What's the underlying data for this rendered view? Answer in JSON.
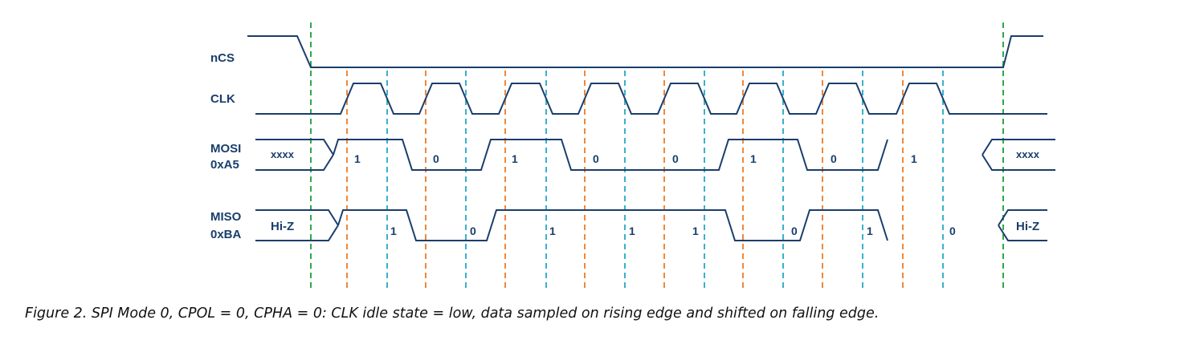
{
  "signals": {
    "ncs": {
      "label": "nCS"
    },
    "clk": {
      "label": "CLK"
    },
    "mosi": {
      "label": "MOSI",
      "value_label": "0xA5",
      "idle_before": "xxxx",
      "idle_after": "xxxx",
      "bits": [
        "1",
        "0",
        "1",
        "0",
        "0",
        "1",
        "0",
        "1"
      ]
    },
    "miso": {
      "label": "MISO",
      "value_label": "0xBA",
      "idle_before": "Hi-Z",
      "idle_after": "Hi-Z",
      "bits": [
        "1",
        "0",
        "1",
        "1",
        "1",
        "0",
        "1",
        "0"
      ]
    }
  },
  "colors": {
    "signal": "#1a3e6b",
    "chip_select_marker": "#2ea84a",
    "rising_edge_marker": "#f0883a",
    "falling_edge_marker": "#3bb0cc"
  },
  "caption": "Figure 2. SPI Mode 0, CPOL = 0, CPHA = 0: CLK idle state = low, data sampled on rising edge and shifted on falling edge."
}
